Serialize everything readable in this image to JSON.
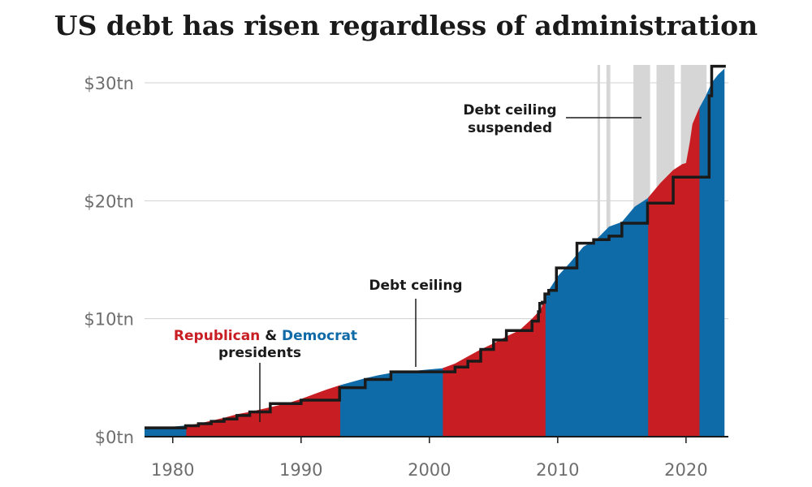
{
  "title": "US debt has risen regardless of administration",
  "colors": {
    "republican": "#c81e23",
    "democrat": "#0f6aa8",
    "ceiling_line": "#1a1a1a",
    "suspended_band": "#d6d6d6",
    "grid": "#d0d0d0",
    "text": "#1a1a1a",
    "tick_text": "#6e6e6e"
  },
  "chart_data": {
    "type": "area",
    "xlim": [
      1977.8,
      2023.3
    ],
    "ylim": [
      0,
      30
    ],
    "x_ticks": [
      1980,
      1990,
      2000,
      2010,
      2020
    ],
    "x_tick_labels": [
      "1980",
      "1990",
      "2000",
      "2010",
      "2020"
    ],
    "y_ticks": [
      0,
      10,
      20,
      30
    ],
    "y_tick_labels": [
      "$0tn",
      "$10tn",
      "$20tn",
      "$30tn"
    ],
    "grid": true,
    "series": [
      {
        "name": "US debt",
        "x": [
          1977.8,
          1979,
          1980,
          1981,
          1982,
          1983,
          1984,
          1985,
          1986,
          1987,
          1988,
          1989,
          1990,
          1991,
          1992,
          1993,
          1994,
          1995,
          1996,
          1997,
          1998,
          1999,
          2000,
          2001,
          2002,
          2003,
          2004,
          2005,
          2006,
          2007,
          2008,
          2008.7,
          2009,
          2010,
          2011,
          2012,
          2013,
          2014,
          2015,
          2016,
          2017,
          2018,
          2019,
          2019.7,
          2020,
          2020.3,
          2020.5,
          2021,
          2021.5,
          2022,
          2022.5,
          2023
        ],
        "values": [
          0.7,
          0.8,
          0.85,
          0.95,
          1.1,
          1.35,
          1.6,
          1.9,
          2.1,
          2.35,
          2.6,
          2.85,
          3.2,
          3.6,
          4.0,
          4.35,
          4.65,
          4.95,
          5.2,
          5.4,
          5.5,
          5.6,
          5.7,
          5.8,
          6.2,
          6.8,
          7.4,
          7.9,
          8.5,
          9.0,
          10.0,
          10.8,
          11.9,
          13.6,
          14.8,
          16.1,
          16.7,
          17.8,
          18.2,
          19.5,
          20.2,
          21.5,
          22.6,
          23.1,
          23.2,
          25.0,
          26.5,
          27.8,
          28.8,
          30.0,
          30.7,
          31.2
        ]
      }
    ],
    "presidential_terms": [
      {
        "party": "Democrat",
        "start": 1977.8,
        "end": 1981.05
      },
      {
        "party": "Republican",
        "start": 1981.05,
        "end": 1993.05
      },
      {
        "party": "Democrat",
        "start": 1993.05,
        "end": 2001.05
      },
      {
        "party": "Republican",
        "start": 2001.05,
        "end": 2009.05
      },
      {
        "party": "Democrat",
        "start": 2009.05,
        "end": 2017.05
      },
      {
        "party": "Republican",
        "start": 2017.05,
        "end": 2021.05
      },
      {
        "party": "Democrat",
        "start": 2021.05,
        "end": 2023.0
      }
    ],
    "debt_ceiling_steps": {
      "x": [
        1977.8,
        1981,
        1982,
        1983,
        1984,
        1985,
        1986,
        1987.6,
        1990,
        1993,
        1995,
        1997,
        2002,
        2003,
        2004,
        2005,
        2006,
        2008,
        2008.5,
        2008.6,
        2008.8,
        2009,
        2009.3,
        2009.9,
        2010.2,
        2011.5,
        2012.8,
        2014,
        2015,
        2016,
        2017,
        2019,
        2021.1,
        2021.8,
        2022
      ],
      "values": [
        0.75,
        0.93,
        1.1,
        1.3,
        1.5,
        1.8,
        2.1,
        2.8,
        3.1,
        4.15,
        4.85,
        5.5,
        5.9,
        6.4,
        7.4,
        8.2,
        9.0,
        9.8,
        10.6,
        11.3,
        11.4,
        12.1,
        12.4,
        14.3,
        14.3,
        16.4,
        16.7,
        17.0,
        18.1,
        18.1,
        19.8,
        22.0,
        22.0,
        28.9,
        31.4
      ],
      "end_x": 2023.1
    },
    "suspended_periods": [
      [
        2013.1,
        2013.3
      ],
      [
        2013.8,
        2014.1
      ],
      [
        2015.9,
        2017.2
      ],
      [
        2017.7,
        2019.1
      ],
      [
        2019.6,
        2021.6
      ]
    ]
  },
  "annotations": {
    "republican": "Republican",
    "amp": "&",
    "democrat": "Democrat",
    "presidents": "presidents",
    "debt_ceiling": "Debt ceiling",
    "suspended_line1": "Debt ceiling",
    "suspended_line2": "suspended"
  }
}
